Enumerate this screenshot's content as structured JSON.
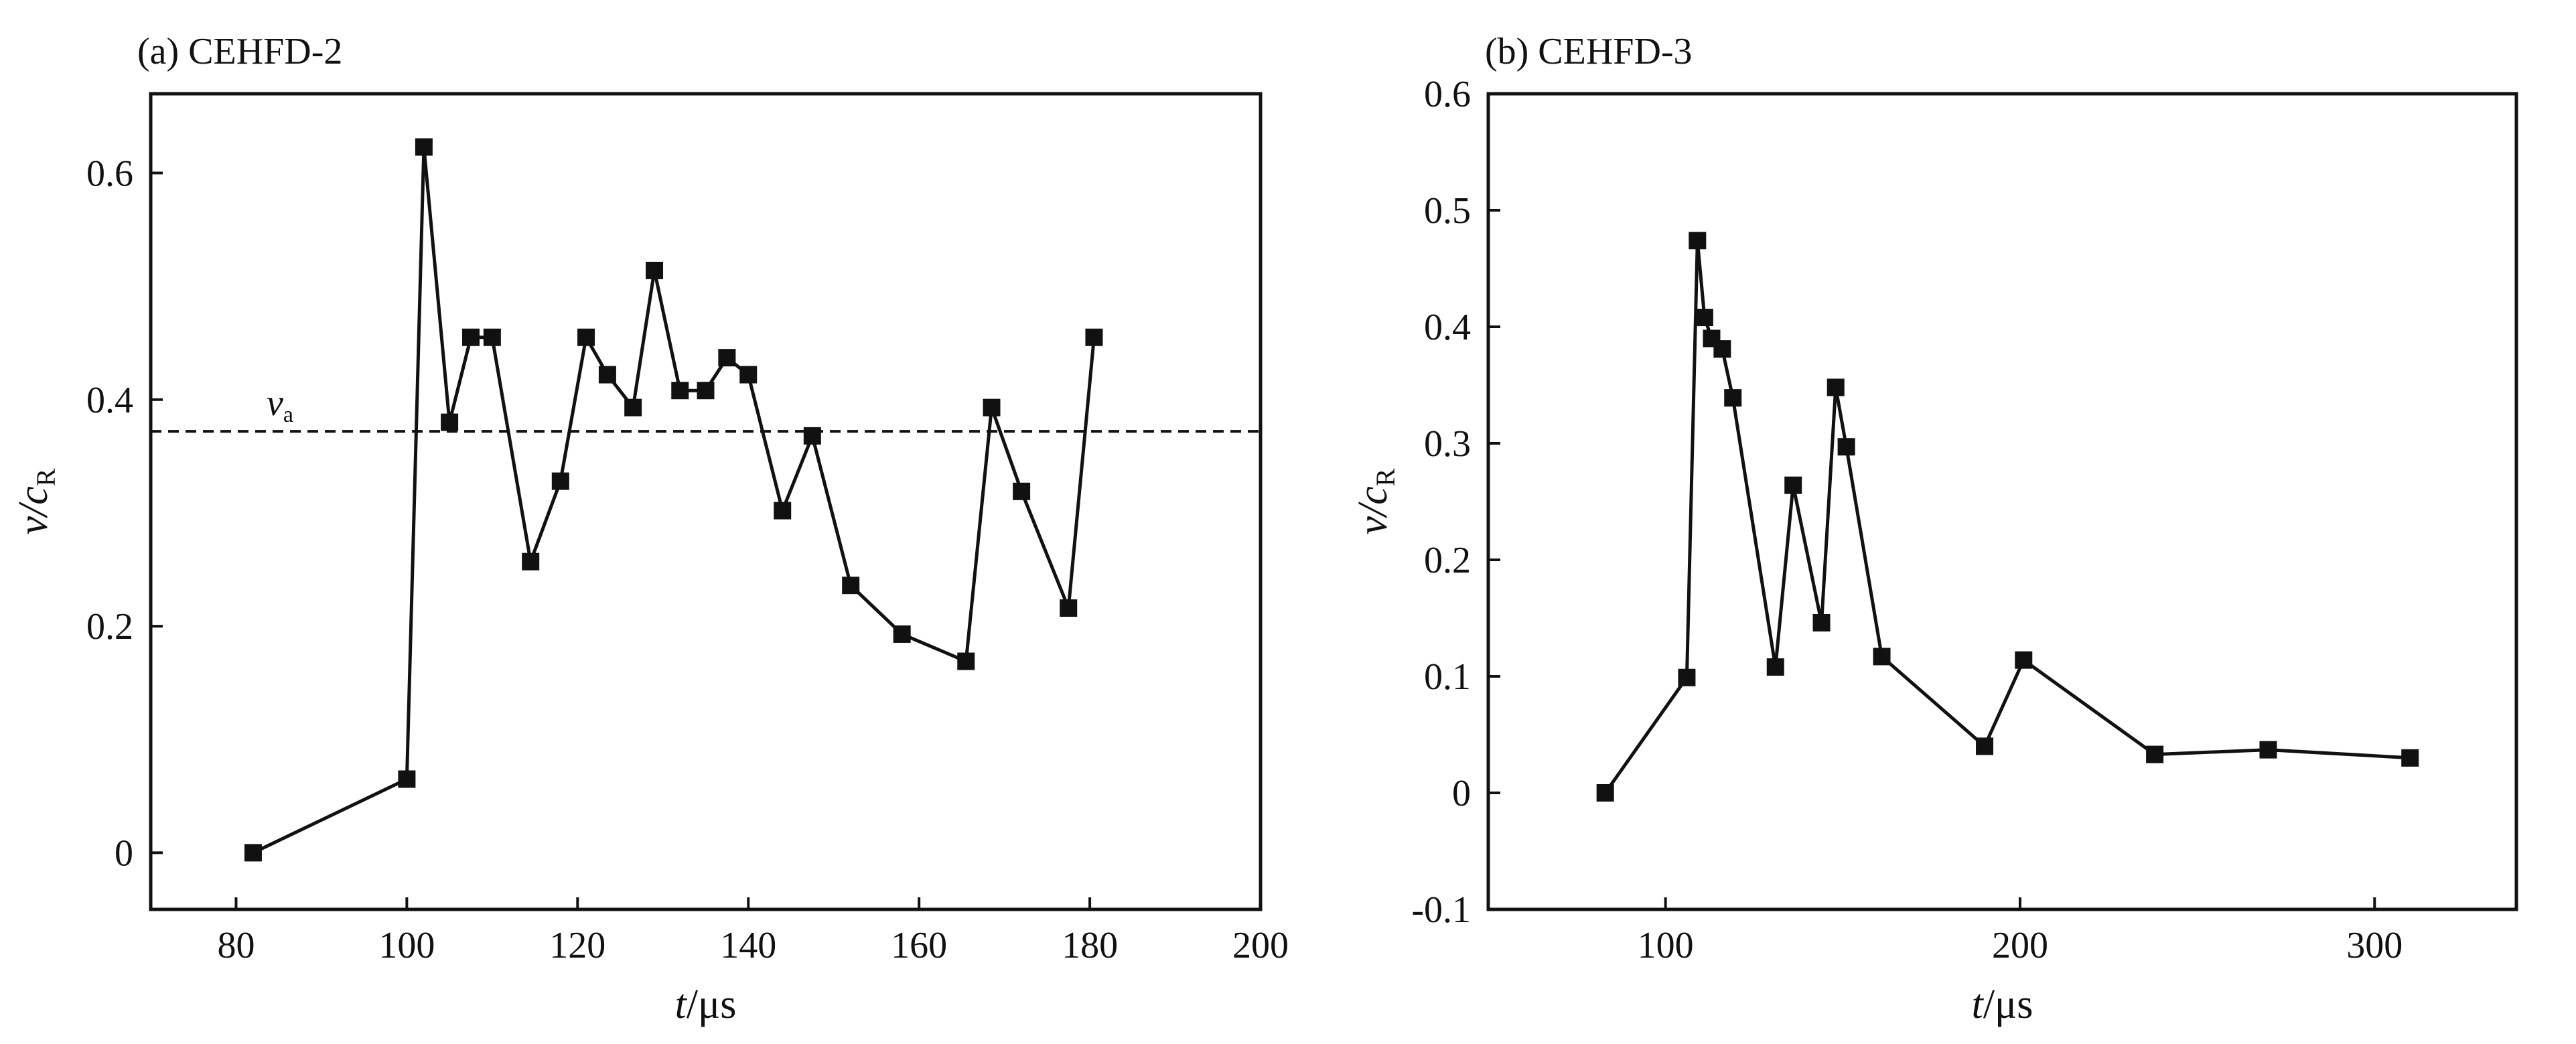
{
  "chart_data": [
    {
      "type": "line",
      "title": "(a) CEHFD-2",
      "xlabel": "t/μs",
      "xlabel_var": "t",
      "xlabel_unit": "/μs",
      "ylabel": "v/cR",
      "ylabel_var": "v/c",
      "ylabel_sub": "R",
      "xlim": [
        70,
        200
      ],
      "ylim": [
        -0.05,
        0.67
      ],
      "xticks": [
        80,
        100,
        120,
        140,
        160,
        180,
        200
      ],
      "yticks": [
        0,
        0.2,
        0.4,
        0.6
      ],
      "xtick_labels": [
        "80",
        "100",
        "120",
        "140",
        "160",
        "180",
        "200"
      ],
      "ytick_labels": [
        "0",
        "0.2",
        "0.4",
        "0.6"
      ],
      "grid": false,
      "series": [
        {
          "marker": "square",
          "color": "#111111",
          "x": [
            82,
            100,
            102,
            105,
            107.5,
            110,
            114.5,
            118,
            121,
            123.5,
            126.5,
            129,
            132,
            135,
            137.5,
            140,
            144,
            147.5,
            152,
            158,
            165.5,
            168.5,
            172,
            177.5,
            180.5
          ],
          "y": [
            0,
            0.065,
            0.623,
            0.38,
            0.455,
            0.455,
            0.257,
            0.328,
            0.455,
            0.422,
            0.393,
            0.514,
            0.408,
            0.408,
            0.437,
            0.422,
            0.302,
            0.368,
            0.236,
            0.193,
            0.169,
            0.393,
            0.319,
            0.216,
            0.455
          ]
        }
      ],
      "reference_line": {
        "y": 0.372,
        "style": "dashed",
        "label": "v",
        "label_sub": "a"
      }
    },
    {
      "type": "line",
      "title": "(b) CEHFD-3",
      "xlabel": "t/μs",
      "xlabel_var": "t",
      "xlabel_unit": "/μs",
      "ylabel": "v/cR",
      "ylabel_var": "v/c",
      "ylabel_sub": "R",
      "xlim": [
        50,
        340
      ],
      "ylim": [
        -0.1,
        0.6
      ],
      "xticks": [
        100,
        200,
        300
      ],
      "yticks": [
        -0.1,
        0,
        0.1,
        0.2,
        0.3,
        0.4,
        0.5,
        0.6
      ],
      "xtick_labels": [
        "100",
        "200",
        "300"
      ],
      "ytick_labels": [
        "-0.1",
        "0",
        "0.1",
        "0.2",
        "0.3",
        "0.4",
        "0.5",
        "0.6"
      ],
      "grid": false,
      "series": [
        {
          "marker": "square",
          "color": "#111111",
          "x": [
            83,
            106,
            109,
            111,
            113,
            116,
            119,
            131,
            136,
            144,
            148,
            151,
            161,
            190,
            201,
            238,
            270,
            310
          ],
          "y": [
            0,
            0.099,
            0.474,
            0.408,
            0.39,
            0.381,
            0.339,
            0.108,
            0.264,
            0.146,
            0.348,
            0.297,
            0.117,
            0.04,
            0.114,
            0.033,
            0.037,
            0.03
          ]
        }
      ]
    }
  ]
}
